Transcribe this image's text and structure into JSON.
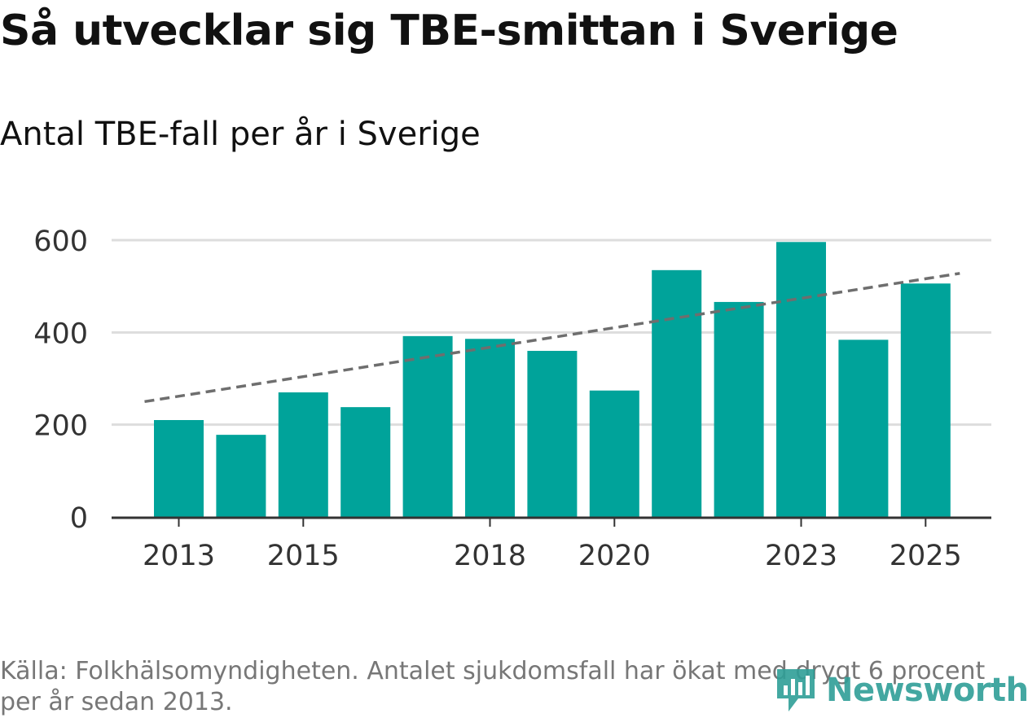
{
  "header": {
    "title": "Så utvecklar sig TBE-smittan i Sverige",
    "subtitle": "Antal TBE-fall per år i Sverige"
  },
  "footer": {
    "source_text": "Källa: Folkhälsomyndigheten. Antalet sjukdomsfall har ökat med drygt 6 procent per år sedan 2013."
  },
  "logo": {
    "name": "Newsworthy"
  },
  "colors": {
    "bar": "#00a39a",
    "trend": "#6e6e6e",
    "grid": "#dddddd",
    "axis": "#333333",
    "logo": "#2f9e97"
  },
  "chart_data": {
    "type": "bar",
    "title": "Antal TBE-fall per år i Sverige",
    "categories": [
      "2013",
      "2014",
      "2015",
      "2016",
      "2017",
      "2018",
      "2019",
      "2020",
      "2021",
      "2022",
      "2023",
      "2024",
      "2025"
    ],
    "values": [
      210,
      178,
      270,
      238,
      392,
      386,
      360,
      274,
      535,
      466,
      596,
      384,
      506
    ],
    "x_tick_labels": [
      "2013",
      "2015",
      "2018",
      "2020",
      "2023",
      "2025"
    ],
    "y_ticks": [
      0,
      200,
      400,
      600
    ],
    "ylim": [
      0,
      600
    ],
    "grid": true,
    "trend_line": {
      "style": "dashed",
      "start_value": 250,
      "end_value": 528
    },
    "xlabel": "",
    "ylabel": ""
  }
}
